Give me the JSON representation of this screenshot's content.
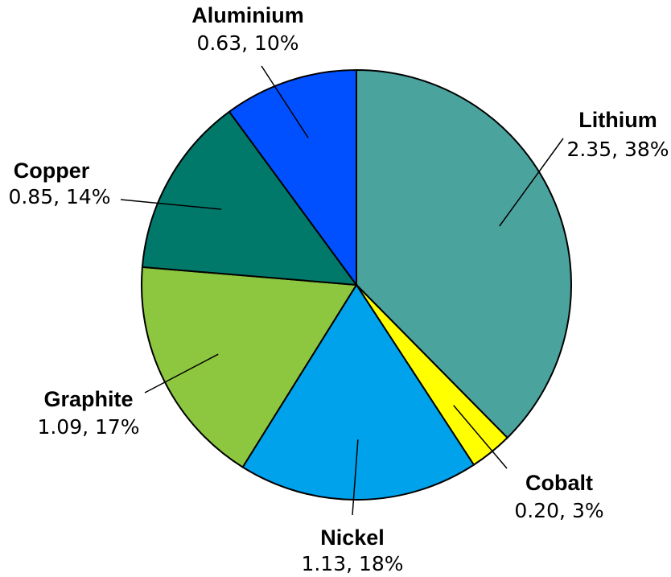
{
  "chart_data": {
    "type": "pie",
    "start_angle_deg": 0,
    "direction": "clockwise",
    "slices": [
      {
        "name": "Lithium",
        "value": 2.35,
        "label_value": "2.35, 38%",
        "color": "#4ba39e"
      },
      {
        "name": "Cobalt",
        "value": 0.2,
        "label_value": "0.20, 3%",
        "color": "#ffff00"
      },
      {
        "name": "Nickel",
        "value": 1.13,
        "label_value": "1.13, 18%",
        "color": "#00a2eb"
      },
      {
        "name": "Graphite",
        "value": 1.09,
        "label_value": "1.09, 17%",
        "color": "#8dc63f"
      },
      {
        "name": "Copper",
        "value": 0.85,
        "label_value": "0.85, 14%",
        "color": "#00796b"
      },
      {
        "name": "Aluminium",
        "value": 0.63,
        "label_value": "0.63, 10%",
        "color": "#0050ff"
      }
    ]
  }
}
